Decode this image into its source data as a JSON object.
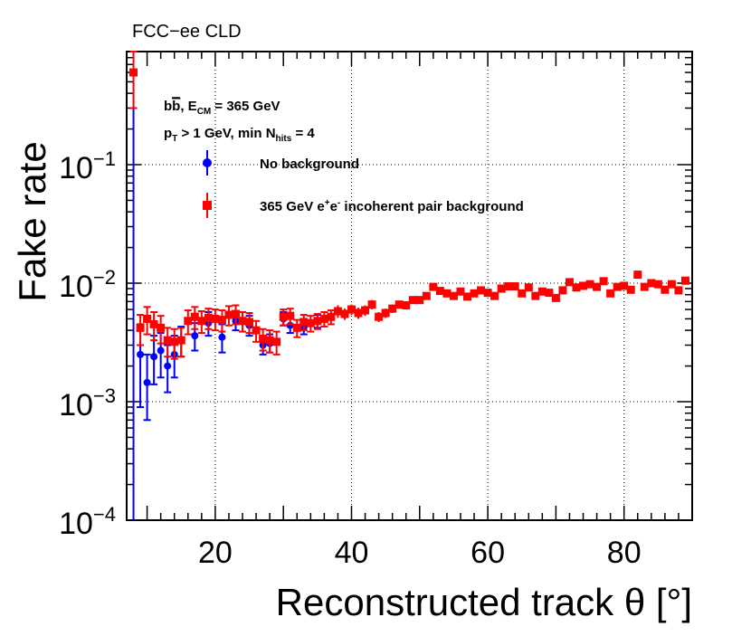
{
  "experiment_label": "FCC−ee CLD",
  "chart_data": {
    "type": "scatter",
    "title": "",
    "xlabel": "Reconstructed track θ [°]",
    "ylabel": "Fake rate",
    "xlim": [
      7,
      90
    ],
    "ylim": [
      0.0001,
      0.9
    ],
    "yscale": "log",
    "grid": true,
    "x_ticks": [
      20,
      40,
      60,
      80
    ],
    "x_tick_labels": [
      "20",
      "40",
      "60",
      "80"
    ],
    "y_ticks": [
      {
        "value": 0.1,
        "base": "10",
        "exp": "−1"
      },
      {
        "value": 0.01,
        "base": "10",
        "exp": "−2"
      },
      {
        "value": 0.001,
        "base": "10",
        "exp": "−3"
      },
      {
        "value": 0.0001,
        "base": "10",
        "exp": "−4"
      }
    ],
    "legend_placement": "top-left inside",
    "annotations": {
      "line1": {
        "b": "b",
        "bbar": "b",
        "mid": ", E",
        "sub": "CM",
        "tail": " = 365 GeV"
      },
      "line2": {
        "p": "p",
        "sub1": "T",
        "mid": " > 1 GeV, min N",
        "sub2": "hits",
        "tail": " = 4"
      }
    },
    "legend_entries": [
      {
        "label": "No background",
        "marker": "circle",
        "color": "#0000ff"
      },
      {
        "label_parts": [
          "365 GeV e",
          "+",
          "e",
          "-",
          " incoherent pair background"
        ],
        "marker": "square",
        "color": "#ff0000"
      }
    ],
    "series": [
      {
        "name": "No background",
        "color": "#0000ff",
        "marker": "circle",
        "x": [
          9,
          10,
          11,
          12,
          13,
          14,
          15,
          17,
          19,
          21,
          23,
          25,
          27,
          28,
          30,
          31,
          33,
          35
        ],
        "y": [
          0.0025,
          0.00145,
          0.0024,
          0.0027,
          0.002,
          0.0025,
          0.0033,
          0.0036,
          0.0046,
          0.0035,
          0.0048,
          0.0044,
          0.003,
          0.0031,
          0.005,
          0.0044,
          0.0042,
          0.0048
        ],
        "ylo": [
          0.0009,
          0.0007,
          0.0014,
          0.0016,
          0.0012,
          0.0016,
          0.0024,
          0.0027,
          0.0036,
          0.0026,
          0.004,
          0.0036,
          0.0025,
          0.0026,
          0.0044,
          0.0038,
          0.0037,
          0.0042
        ],
        "yhi": [
          0.0045,
          0.0025,
          0.0036,
          0.0038,
          0.003,
          0.0036,
          0.0043,
          0.0046,
          0.0057,
          0.0045,
          0.0058,
          0.0053,
          0.0036,
          0.0037,
          0.0057,
          0.005,
          0.0048,
          0.0054
        ]
      },
      {
        "name": "365 GeV e+e- incoherent pair background",
        "color": "#ff0000",
        "marker": "square",
        "x": [
          8,
          9,
          10,
          11,
          12,
          13,
          14,
          15,
          16,
          17,
          18,
          19,
          20,
          21,
          22,
          23,
          24,
          25,
          26,
          27,
          28,
          29,
          30,
          31,
          32,
          33,
          34,
          35,
          36,
          37,
          38,
          39,
          40,
          41,
          42,
          43,
          44,
          45,
          46,
          47,
          48,
          49,
          50,
          51,
          52,
          53,
          54,
          55,
          56,
          57,
          58,
          59,
          60,
          61,
          62,
          63,
          64,
          65,
          66,
          67,
          68,
          69,
          70,
          71,
          72,
          73,
          74,
          75,
          76,
          77,
          78,
          79,
          80,
          81,
          82,
          83,
          84,
          85,
          86,
          87,
          88,
          89
        ],
        "y": [
          0.6,
          0.0042,
          0.005,
          0.0045,
          0.0042,
          0.0033,
          0.0032,
          0.0033,
          0.0048,
          0.0052,
          0.0048,
          0.0051,
          0.005,
          0.0049,
          0.0054,
          0.0055,
          0.0048,
          0.0047,
          0.004,
          0.0034,
          0.0033,
          0.0032,
          0.0052,
          0.0053,
          0.0042,
          0.0047,
          0.0046,
          0.0048,
          0.005,
          0.0052,
          0.0058,
          0.0055,
          0.006,
          0.0056,
          0.0059,
          0.0066,
          0.0052,
          0.0056,
          0.0061,
          0.0066,
          0.0065,
          0.0072,
          0.0072,
          0.0078,
          0.0093,
          0.0086,
          0.0082,
          0.0078,
          0.0085,
          0.0077,
          0.0082,
          0.0087,
          0.0083,
          0.0078,
          0.009,
          0.0094,
          0.0094,
          0.0082,
          0.0092,
          0.0078,
          0.0085,
          0.0083,
          0.0075,
          0.0087,
          0.0102,
          0.0092,
          0.0095,
          0.0098,
          0.0093,
          0.0104,
          0.0082,
          0.0093,
          0.0095,
          0.0088,
          0.0118,
          0.0093,
          0.01,
          0.0098,
          0.0088,
          0.0098,
          0.0087,
          0.0105
        ],
        "err": [
          0.3,
          0.0012,
          0.0013,
          0.0012,
          0.0011,
          0.0009,
          0.0009,
          0.0009,
          0.0011,
          0.0011,
          0.001,
          0.001,
          0.001,
          0.001,
          0.001,
          0.001,
          0.0009,
          0.0009,
          0.0008,
          0.0007,
          0.0007,
          0.0007,
          0.0008,
          0.0008,
          0.0007,
          0.0007,
          0.0007,
          0.0007,
          0.0007,
          0.0007,
          0.0007,
          0.0006,
          0.0006,
          0.0006,
          0.0006,
          0.0006,
          0.0005,
          0.0005,
          0.0005,
          0.0005,
          0.0005,
          0.0005,
          0.0005,
          0.0005,
          0.0005,
          0.0005,
          0.0005,
          0.0005,
          0.0005,
          0.0005,
          0.0005,
          0.0005,
          0.0005,
          0.0005,
          0.0005,
          0.0005,
          0.0005,
          0.0005,
          0.0005,
          0.0005,
          0.0005,
          0.0005,
          0.0005,
          0.0005,
          0.0005,
          0.0005,
          0.0005,
          0.0005,
          0.0005,
          0.0005,
          0.0005,
          0.0005,
          0.0005,
          0.0005,
          0.0005,
          0.0005,
          0.0005,
          0.0005,
          0.0005,
          0.0005,
          0.0005,
          0.0005
        ]
      }
    ]
  }
}
